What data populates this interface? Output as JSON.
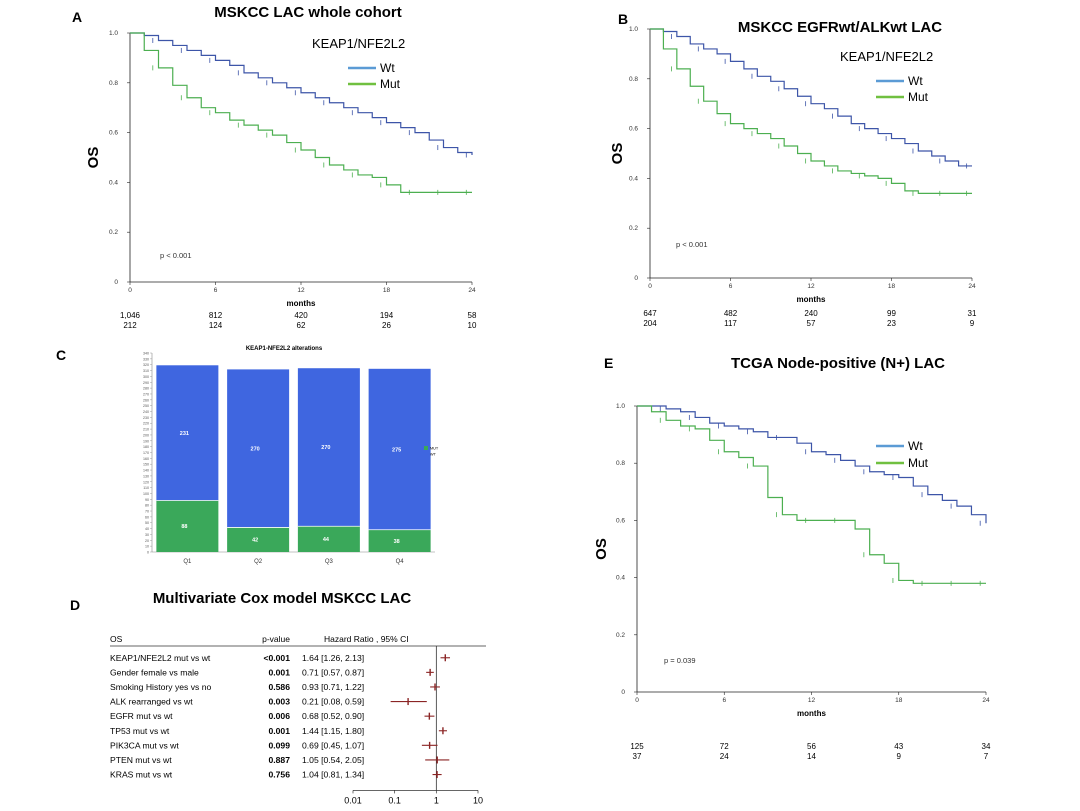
{
  "panels": {
    "A": {
      "letter": "A",
      "title": "MSKCC LAC whole cohort"
    },
    "B": {
      "letter": "B",
      "title": "MSKCC EGFRwt/ALKwt LAC"
    },
    "C": {
      "letter": "C",
      "title": "KEAP1-NFE2L2 alterations"
    },
    "D": {
      "letter": "D",
      "title": "Multivariate Cox model MSKCC LAC"
    },
    "E": {
      "letter": "E",
      "title": "TCGA Node-positive (N+) LAC"
    }
  },
  "colors": {
    "wt": "#3d55a8",
    "mut": "#4caf50",
    "wt_legend": "#5b9bd5",
    "mut_legend": "#70c040",
    "bar_wt": "#3f66e0",
    "bar_mut": "#3aa85a",
    "forest": "#8b2525"
  },
  "chart_data": [
    {
      "id": "A",
      "type": "line",
      "title": "MSKCC LAC whole cohort",
      "ylabel": "OS",
      "xlabel": "months",
      "legend_title": "KEAP1/NFE2L2",
      "xlim": [
        0,
        24
      ],
      "ylim": [
        0,
        1
      ],
      "xticks": [
        "0",
        "6",
        "12",
        "18",
        "24"
      ],
      "yticks": [
        "0",
        "0.2",
        "0.4",
        "0.6",
        "0.8",
        "1.0"
      ],
      "pvalue": "p < 0.001",
      "series": [
        {
          "name": "Wt",
          "x": [
            0,
            1,
            2,
            3,
            4,
            5,
            6,
            7,
            8,
            9,
            10,
            11,
            12,
            13,
            14,
            15,
            16,
            17,
            18,
            19,
            20,
            21,
            22,
            23,
            24
          ],
          "y": [
            1.0,
            0.99,
            0.97,
            0.95,
            0.93,
            0.91,
            0.89,
            0.87,
            0.84,
            0.82,
            0.8,
            0.78,
            0.76,
            0.74,
            0.72,
            0.7,
            0.68,
            0.66,
            0.64,
            0.62,
            0.6,
            0.57,
            0.54,
            0.52,
            0.51
          ]
        },
        {
          "name": "Mut",
          "x": [
            0,
            1,
            2,
            3,
            4,
            5,
            6,
            7,
            8,
            9,
            10,
            11,
            12,
            13,
            14,
            15,
            16,
            17,
            18,
            19,
            20,
            21,
            22,
            23,
            24
          ],
          "y": [
            1.0,
            0.93,
            0.86,
            0.79,
            0.74,
            0.7,
            0.68,
            0.65,
            0.63,
            0.61,
            0.59,
            0.56,
            0.53,
            0.5,
            0.47,
            0.45,
            0.43,
            0.42,
            0.39,
            0.36,
            0.36,
            0.36,
            0.36,
            0.36,
            0.36
          ]
        }
      ],
      "risk_table": {
        "times": [
          "0",
          "6",
          "12",
          "18",
          "24"
        ],
        "rows": [
          [
            "1,046",
            "812",
            "420",
            "194",
            "58"
          ],
          [
            "212",
            "124",
            "62",
            "26",
            "10"
          ]
        ]
      }
    },
    {
      "id": "B",
      "type": "line",
      "title": "MSKCC EGFRwt/ALKwt LAC",
      "ylabel": "OS",
      "xlabel": "months",
      "legend_title": "KEAP1/NFE2L2",
      "xlim": [
        0,
        24
      ],
      "ylim": [
        0,
        1
      ],
      "xticks": [
        "0",
        "6",
        "12",
        "18",
        "24"
      ],
      "yticks": [
        "0",
        "0.2",
        "0.4",
        "0.6",
        "0.8",
        "1.0"
      ],
      "pvalue": "p < 0.001",
      "series": [
        {
          "name": "Wt",
          "x": [
            0,
            1,
            2,
            3,
            4,
            5,
            6,
            7,
            8,
            9,
            10,
            11,
            12,
            13,
            14,
            15,
            16,
            17,
            18,
            19,
            20,
            21,
            22,
            23,
            24
          ],
          "y": [
            1.0,
            0.99,
            0.97,
            0.94,
            0.92,
            0.9,
            0.87,
            0.84,
            0.81,
            0.79,
            0.76,
            0.73,
            0.7,
            0.68,
            0.65,
            0.62,
            0.6,
            0.58,
            0.56,
            0.54,
            0.51,
            0.49,
            0.47,
            0.45,
            0.45
          ]
        },
        {
          "name": "Mut",
          "x": [
            0,
            1,
            2,
            3,
            4,
            5,
            6,
            7,
            8,
            9,
            10,
            11,
            12,
            13,
            14,
            15,
            16,
            17,
            18,
            19,
            20,
            21,
            22,
            23,
            24
          ],
          "y": [
            1.0,
            0.92,
            0.84,
            0.77,
            0.71,
            0.66,
            0.62,
            0.6,
            0.58,
            0.56,
            0.53,
            0.5,
            0.47,
            0.45,
            0.43,
            0.42,
            0.41,
            0.4,
            0.38,
            0.35,
            0.34,
            0.34,
            0.34,
            0.34,
            0.34
          ]
        }
      ],
      "risk_table": {
        "times": [
          "0",
          "6",
          "12",
          "18",
          "24"
        ],
        "rows": [
          [
            "647",
            "482",
            "240",
            "99",
            "31"
          ],
          [
            "204",
            "117",
            "57",
            "23",
            "9"
          ]
        ]
      }
    },
    {
      "id": "C",
      "type": "bar",
      "title": "KEAP1-NFE2L2 alterations",
      "categories": [
        "Q1",
        "Q2",
        "Q3",
        "Q4"
      ],
      "ylim": [
        0,
        340
      ],
      "series": [
        {
          "name": "MUT",
          "values": [
            88,
            42,
            44,
            38
          ]
        },
        {
          "name": "WT",
          "values": [
            231,
            270,
            270,
            275
          ]
        }
      ]
    },
    {
      "id": "D",
      "type": "table",
      "title": "Multivariate Cox model MSKCC LAC",
      "headers": [
        "OS",
        "p-value",
        "Hazard Ratio , 95% CI"
      ],
      "rows": [
        {
          "label": "KEAP1/NFE2L2 mut vs wt",
          "p": "<0.001",
          "hr_text": "1.64 [1.26, 2.13]",
          "hr": 1.64,
          "lo": 1.26,
          "hi": 2.13
        },
        {
          "label": "Gender female vs male",
          "p": "0.001",
          "hr_text": "0.71 [0.57, 0.87]",
          "hr": 0.71,
          "lo": 0.57,
          "hi": 0.87
        },
        {
          "label": "Smoking History yes vs no",
          "p": "0.586",
          "hr_text": "0.93 [0.71, 1.22]",
          "hr": 0.93,
          "lo": 0.71,
          "hi": 1.22
        },
        {
          "label": "ALK rearranged vs wt",
          "p": "0.003",
          "hr_text": "0.21 [0.08, 0.59]",
          "hr": 0.21,
          "lo": 0.08,
          "hi": 0.59
        },
        {
          "label": "EGFR mut vs wt",
          "p": "0.006",
          "hr_text": "0.68 [0.52, 0.90]",
          "hr": 0.68,
          "lo": 0.52,
          "hi": 0.9
        },
        {
          "label": "TP53 mut vs wt",
          "p": "0.001",
          "hr_text": "1.44 [1.15, 1.80]",
          "hr": 1.44,
          "lo": 1.15,
          "hi": 1.8
        },
        {
          "label": "PIK3CA mut vs wt",
          "p": "0.099",
          "hr_text": "0.69 [0.45, 1.07]",
          "hr": 0.69,
          "lo": 0.45,
          "hi": 1.07
        },
        {
          "label": "PTEN mut vs wt",
          "p": "0.887",
          "hr_text": "1.05 [0.54, 2.05]",
          "hr": 1.05,
          "lo": 0.54,
          "hi": 2.05
        },
        {
          "label": "KRAS mut vs wt",
          "p": "0.756",
          "hr_text": "1.04 [0.81, 1.34]",
          "hr": 1.04,
          "lo": 0.81,
          "hi": 1.34
        }
      ],
      "xticks": [
        "0.01",
        "0.1",
        "1",
        "10"
      ]
    },
    {
      "id": "E",
      "type": "line",
      "title": "TCGA Node-positive (N+) LAC",
      "ylabel": "OS",
      "xlabel": "months",
      "xlim": [
        0,
        24
      ],
      "ylim": [
        0,
        1
      ],
      "xticks": [
        "0",
        "6",
        "12",
        "18",
        "24"
      ],
      "yticks": [
        "0",
        "0.2",
        "0.4",
        "0.6",
        "0.8",
        "1.0"
      ],
      "pvalue": "p = 0.039",
      "series": [
        {
          "name": "Wt",
          "x": [
            0,
            1,
            2,
            3,
            4,
            5,
            6,
            7,
            8,
            9,
            10,
            11,
            12,
            13,
            14,
            15,
            16,
            17,
            18,
            19,
            20,
            21,
            22,
            23,
            24
          ],
          "y": [
            1.0,
            1.0,
            0.99,
            0.98,
            0.96,
            0.94,
            0.93,
            0.92,
            0.91,
            0.89,
            0.89,
            0.87,
            0.84,
            0.83,
            0.81,
            0.79,
            0.77,
            0.76,
            0.75,
            0.72,
            0.69,
            0.67,
            0.65,
            0.62,
            0.59
          ]
        },
        {
          "name": "Mut",
          "x": [
            0,
            1,
            2,
            3,
            4,
            5,
            6,
            7,
            8,
            9,
            10,
            11,
            12,
            13,
            14,
            15,
            16,
            17,
            18,
            19,
            20,
            21,
            22,
            23,
            24
          ],
          "y": [
            1.0,
            0.98,
            0.95,
            0.93,
            0.92,
            0.88,
            0.84,
            0.82,
            0.79,
            0.68,
            0.62,
            0.6,
            0.6,
            0.6,
            0.6,
            0.57,
            0.48,
            0.45,
            0.39,
            0.38,
            0.38,
            0.38,
            0.38,
            0.38,
            0.38
          ]
        }
      ],
      "risk_table": {
        "times": [
          "0",
          "6",
          "12",
          "18",
          "24"
        ],
        "rows": [
          [
            "125",
            "72",
            "56",
            "43",
            "34"
          ],
          [
            "37",
            "24",
            "14",
            "9",
            "7"
          ]
        ]
      }
    }
  ]
}
